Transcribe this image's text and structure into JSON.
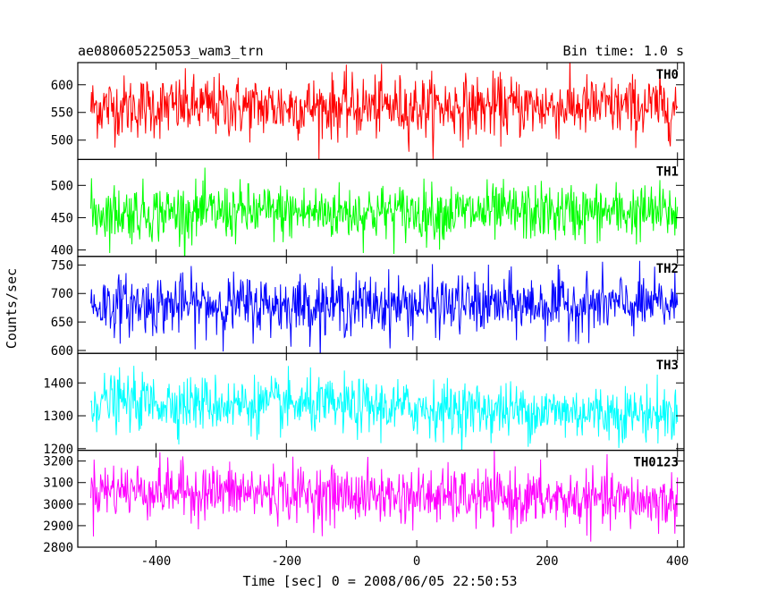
{
  "chart_data": {
    "type": "line",
    "title": "ae080605225053_wam3_trn",
    "bin_time": "Bin time: 1.0 s",
    "xlabel": "Time [sec] 0 = 2008/06/05 22:50:53",
    "ylabel": "Counts/sec",
    "xlim": [
      -520,
      410
    ],
    "x_ticks": [
      -400,
      -200,
      0,
      200,
      400
    ],
    "x_range": [
      -500,
      400
    ],
    "panels": [
      {
        "name": "TH0",
        "color": "#ff0000",
        "ylim": [
          465,
          640
        ],
        "y_ticks": [
          500,
          550,
          600
        ],
        "mean": 560,
        "sigma": 28,
        "trend": 0
      },
      {
        "name": "TH1",
        "color": "#00ff00",
        "ylim": [
          390,
          540
        ],
        "y_ticks": [
          400,
          450,
          500
        ],
        "mean": 458,
        "sigma": 22,
        "trend": 0
      },
      {
        "name": "TH2",
        "color": "#0000ff",
        "ylim": [
          595,
          765
        ],
        "y_ticks": [
          600,
          650,
          700,
          750
        ],
        "mean": 680,
        "sigma": 26,
        "trend": 0
      },
      {
        "name": "TH3",
        "color": "#00ffff",
        "ylim": [
          1195,
          1490
        ],
        "y_ticks": [
          1200,
          1300,
          1400
        ],
        "mean": 1325,
        "sigma": 42,
        "trend": -40
      },
      {
        "name": "TH0123",
        "color": "#ff00ff",
        "ylim": [
          2800,
          3250
        ],
        "y_ticks": [
          2800,
          2900,
          3000,
          3100,
          3200
        ],
        "mean": 3040,
        "sigma": 65,
        "trend": -60
      }
    ]
  }
}
